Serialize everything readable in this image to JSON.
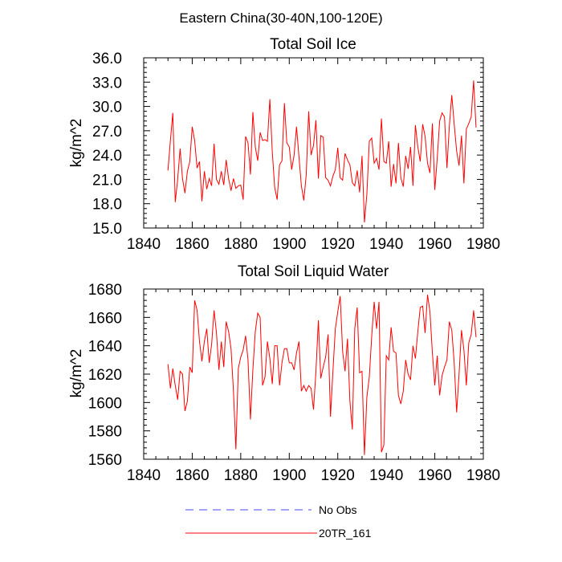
{
  "figure_title": "Eastern China(30-40N,100-120E)",
  "legend": [
    {
      "label": "No Obs",
      "color": "#4a4aff",
      "style": "dashed"
    },
    {
      "label": "20TR_161",
      "color": "#ff0000",
      "style": "solid"
    }
  ],
  "chart_data": [
    {
      "type": "line",
      "title": "Total Soil Ice",
      "xlabel": "",
      "ylabel": "kg/m^2",
      "xlim": [
        1840,
        1980
      ],
      "ylim": [
        15.0,
        36.0
      ],
      "xticks": [
        1840,
        1860,
        1880,
        1900,
        1920,
        1940,
        1960,
        1980
      ],
      "yticks": [
        "15.0",
        "18.0",
        "21.0",
        "24.0",
        "27.0",
        "30.0",
        "33.0",
        "36.0"
      ],
      "ytick_values": [
        15,
        18,
        21,
        24,
        27,
        30,
        33,
        36
      ],
      "series": [
        {
          "name": "20TR_161",
          "color": "#ff0000",
          "x_start": 1850,
          "x_step": 1,
          "values": [
            22.1,
            25.8,
            29.2,
            18.2,
            21.0,
            24.8,
            21.1,
            19.3,
            22.0,
            23.2,
            27.5,
            25.8,
            22.4,
            23.2,
            18.3,
            22.0,
            19.8,
            21.1,
            20.2,
            25.4,
            21.0,
            20.4,
            22.0,
            20.3,
            23.4,
            21.1,
            19.6,
            21.1,
            19.9,
            20.2,
            20.3,
            18.5,
            26.3,
            25.5,
            21.6,
            29.3,
            25.0,
            23.3,
            26.8,
            25.8,
            25.9,
            25.7,
            30.9,
            24.4,
            20.0,
            18.5,
            22.8,
            23.3,
            30.4,
            25.5,
            25.0,
            22.2,
            24.0,
            27.5,
            23.8,
            20.2,
            18.4,
            21.6,
            29.4,
            24.0,
            25.2,
            28.3,
            21.1,
            26.4,
            26.2,
            21.2,
            20.9,
            20.2,
            21.4,
            22.2,
            24.9,
            21.2,
            20.9,
            24.2,
            23.4,
            22.8,
            20.6,
            20.2,
            22.1,
            19.4,
            23.9,
            15.7,
            19.2,
            25.7,
            26.1,
            23.0,
            23.6,
            22.2,
            28.5,
            23.2,
            23.0,
            25.7,
            20.1,
            22.9,
            20.5,
            25.5,
            21.2,
            20.1,
            23.9,
            22.3,
            25.0,
            20.2,
            27.7,
            25.0,
            23.2,
            27.8,
            26.3,
            23.0,
            21.8,
            27.9,
            19.7,
            23.6,
            28.2,
            29.2,
            28.7,
            22.4,
            27.6,
            31.4,
            27.8,
            24.5,
            22.7,
            26.4,
            20.5,
            27.2,
            27.9,
            28.7,
            33.2,
            27.4
          ]
        }
      ]
    },
    {
      "type": "line",
      "title": "Total Soil Liquid Water",
      "xlabel": "",
      "ylabel": "kg/m^2",
      "xlim": [
        1840,
        1980
      ],
      "ylim": [
        1560,
        1680
      ],
      "xticks": [
        1840,
        1860,
        1880,
        1900,
        1920,
        1940,
        1960,
        1980
      ],
      "yticks": [
        "1560",
        "1580",
        "1600",
        "1620",
        "1640",
        "1660",
        "1680"
      ],
      "ytick_values": [
        1560,
        1580,
        1600,
        1620,
        1640,
        1660,
        1680
      ],
      "series": [
        {
          "name": "20TR_161",
          "color": "#ff0000",
          "x_start": 1850,
          "x_step": 1,
          "values": [
            1627,
            1610,
            1624,
            1612,
            1602,
            1622,
            1620,
            1594,
            1601,
            1625,
            1621,
            1672,
            1665,
            1643,
            1629,
            1643,
            1652,
            1628,
            1641,
            1665,
            1649,
            1623,
            1643,
            1625,
            1657,
            1650,
            1638,
            1608,
            1567,
            1624,
            1632,
            1637,
            1647,
            1630,
            1588,
            1623,
            1650,
            1663,
            1660,
            1612,
            1618,
            1643,
            1631,
            1613,
            1640,
            1640,
            1612,
            1628,
            1638,
            1638,
            1628,
            1628,
            1623,
            1635,
            1643,
            1608,
            1612,
            1608,
            1612,
            1610,
            1595,
            1622,
            1658,
            1617,
            1625,
            1632,
            1648,
            1590,
            1622,
            1652,
            1664,
            1675,
            1636,
            1622,
            1645,
            1601,
            1581,
            1652,
            1667,
            1621,
            1622,
            1563,
            1604,
            1618,
            1647,
            1671,
            1652,
            1671,
            1565,
            1570,
            1633,
            1630,
            1653,
            1636,
            1635,
            1605,
            1599,
            1608,
            1630,
            1620,
            1616,
            1640,
            1631,
            1650,
            1667,
            1668,
            1649,
            1676,
            1664,
            1635,
            1612,
            1633,
            1605,
            1619,
            1625,
            1630,
            1657,
            1651,
            1628,
            1593,
            1620,
            1651,
            1637,
            1612,
            1642,
            1648,
            1665,
            1646
          ]
        }
      ]
    }
  ]
}
